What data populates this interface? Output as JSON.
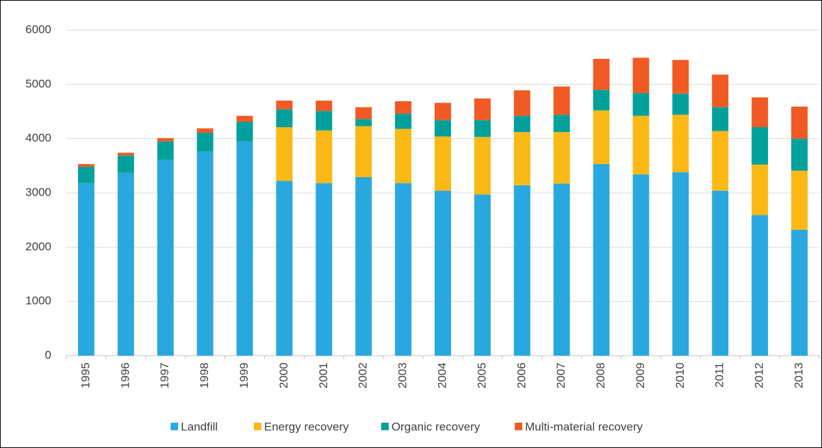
{
  "chart_data": {
    "type": "stacked_bar",
    "categories": [
      "1995",
      "1996",
      "1997",
      "1998",
      "1999",
      "2000",
      "2001",
      "2002",
      "2003",
      "2004",
      "2005",
      "2006",
      "2007",
      "2008",
      "2009",
      "2010",
      "2011",
      "2012",
      "2013"
    ],
    "series": [
      {
        "name": "Landfill",
        "color": "#29a8e0",
        "values": [
          3180,
          3370,
          3610,
          3760,
          3950,
          3220,
          3180,
          3290,
          3180,
          3040,
          2970,
          3140,
          3170,
          3530,
          3340,
          3380,
          3040,
          2590,
          2320
        ]
      },
      {
        "name": "Energy recovery",
        "color": "#fbb916",
        "values": [
          0,
          0,
          0,
          0,
          0,
          990,
          970,
          940,
          1000,
          1000,
          1060,
          980,
          950,
          990,
          1080,
          1060,
          1100,
          930,
          1090
        ]
      },
      {
        "name": "Organic recovery",
        "color": "#00a19a",
        "values": [
          300,
          320,
          340,
          350,
          360,
          330,
          360,
          130,
          280,
          300,
          310,
          300,
          320,
          380,
          420,
          390,
          440,
          690,
          590
        ]
      },
      {
        "name": "Multi-material recovery",
        "color": "#f15a24",
        "values": [
          50,
          50,
          60,
          80,
          110,
          160,
          190,
          220,
          230,
          320,
          400,
          470,
          520,
          570,
          650,
          620,
          600,
          550,
          590
        ]
      }
    ],
    "ylim": [
      0,
      6000
    ],
    "yticks": [
      0,
      1000,
      2000,
      3000,
      4000,
      5000,
      6000
    ],
    "grid": true,
    "legend": "bottom"
  }
}
